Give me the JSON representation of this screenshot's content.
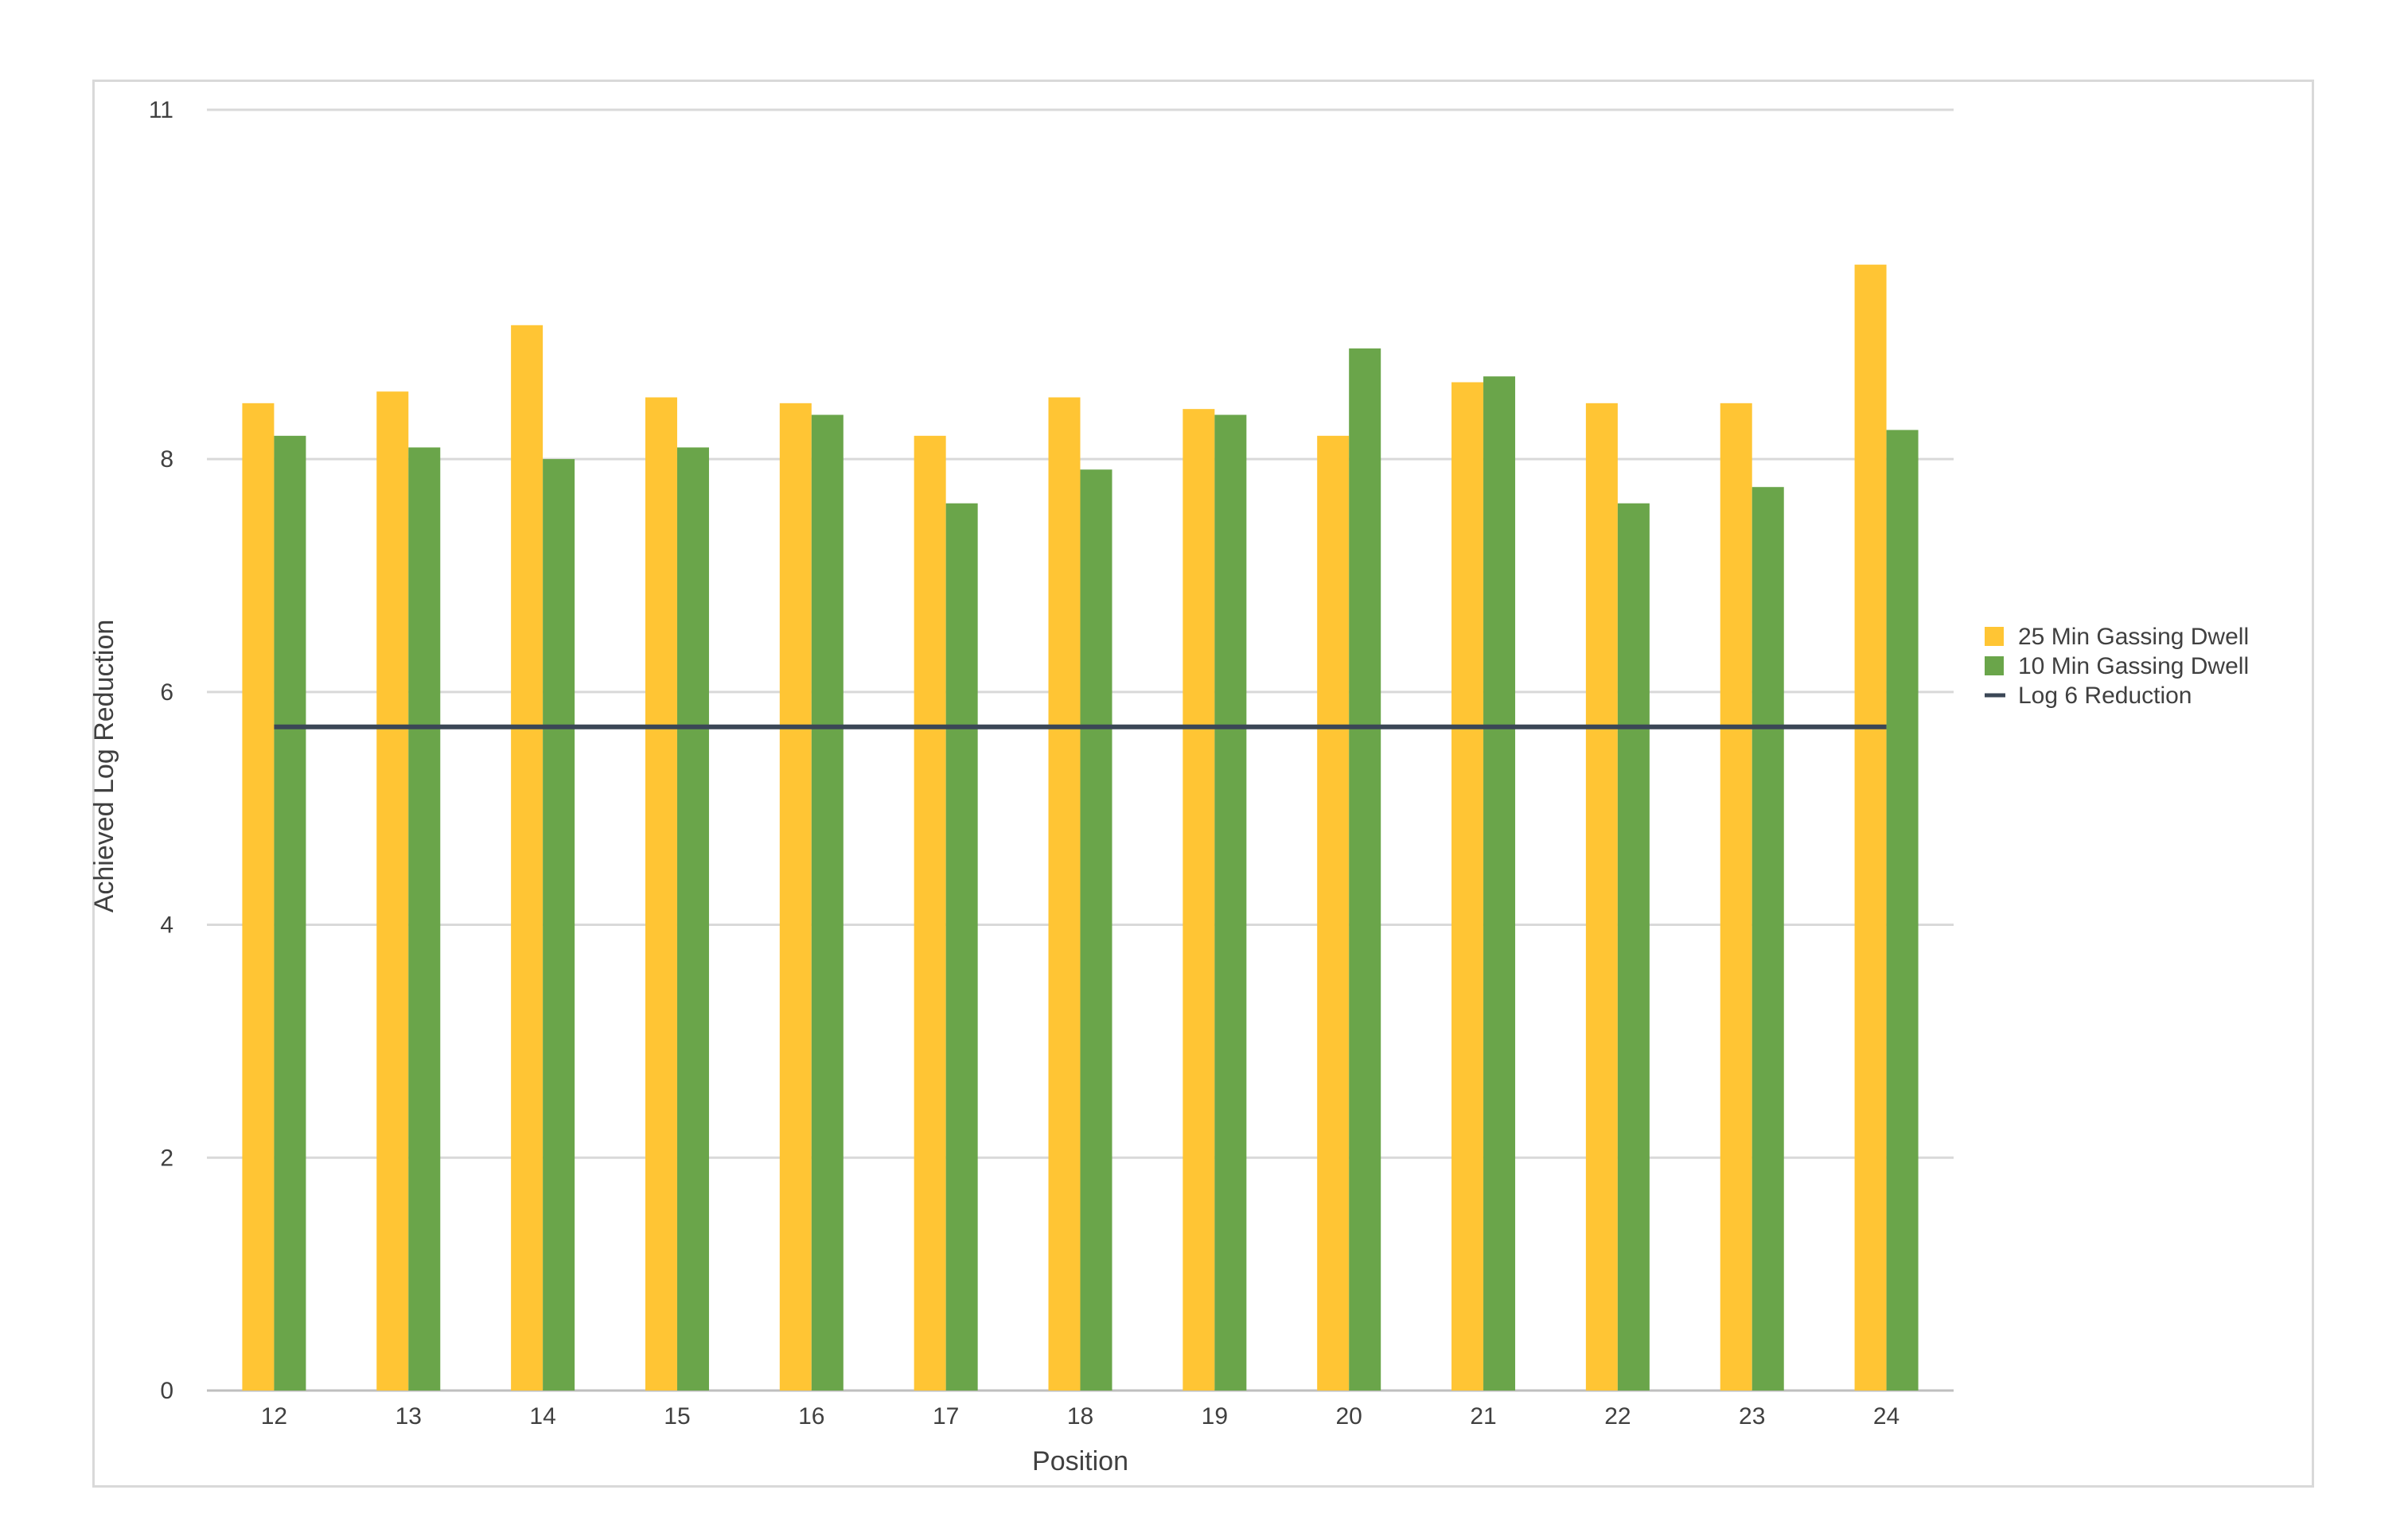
{
  "chart_data": {
    "type": "bar",
    "title": "",
    "xlabel": "Position",
    "ylabel": "Achieved Log Reduction",
    "ylim": [
      0,
      11
    ],
    "yticks": [
      0,
      2,
      4,
      6,
      8,
      11
    ],
    "grid": true,
    "legend_position": "right",
    "categories": [
      "12",
      "13",
      "14",
      "15",
      "16",
      "17",
      "18",
      "19",
      "20",
      "21",
      "22",
      "23",
      "24"
    ],
    "series": [
      {
        "name": "25 Min Gassing Dwell",
        "type": "bar",
        "color": "#FFC534",
        "values": [
          8.48,
          8.58,
          9.15,
          8.53,
          8.48,
          8.2,
          8.53,
          8.43,
          8.2,
          8.66,
          8.48,
          8.48,
          9.67
        ]
      },
      {
        "name": "10 Min Gassing Dwell",
        "type": "bar",
        "color": "#6AA54A",
        "values": [
          8.2,
          8.1,
          8.0,
          8.1,
          8.38,
          7.62,
          7.91,
          8.38,
          8.95,
          8.71,
          7.62,
          7.76,
          8.25
        ]
      },
      {
        "name": "Log 6 Reduction",
        "type": "line",
        "color": "#3B4756",
        "values": [
          5.7,
          5.7,
          5.7,
          5.7,
          5.7,
          5.7,
          5.7,
          5.7,
          5.7,
          5.7,
          5.7,
          5.7,
          5.7
        ]
      }
    ]
  }
}
